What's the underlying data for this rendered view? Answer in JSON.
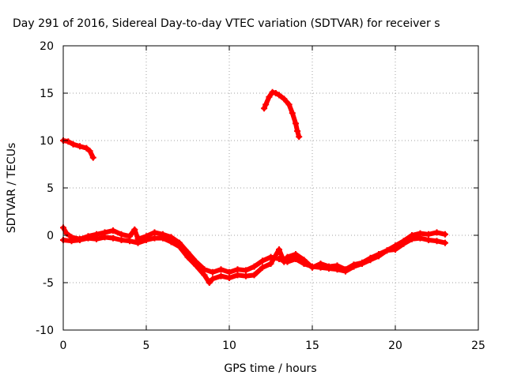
{
  "chart_data": {
    "type": "line",
    "title": "Day 291 of 2016, Sidereal Day-to-day VTEC variation (SDTVAR) for receiver s",
    "xlabel": "GPS time / hours",
    "ylabel": "SDTVAR / TECUs",
    "xlim": [
      0,
      25
    ],
    "ylim": [
      -10,
      20
    ],
    "xticks": [
      0,
      5,
      10,
      15,
      20,
      25
    ],
    "yticks": [
      -10,
      -5,
      0,
      5,
      10,
      15,
      20
    ],
    "grid": true,
    "legend": "none",
    "colors": {
      "series": "#ff0000",
      "grid": "#a0a0a0",
      "axis": "#000000"
    },
    "series": [
      {
        "points": [
          [
            0,
            0.8
          ],
          [
            0.2,
            0.2
          ],
          [
            0.5,
            -0.2
          ],
          [
            1,
            -0.4
          ],
          [
            1.5,
            -0.1
          ],
          [
            2,
            0.1
          ],
          [
            2.5,
            0.3
          ],
          [
            3,
            0.5
          ],
          [
            3.5,
            0.1
          ],
          [
            4,
            -0.1
          ],
          [
            4.3,
            0.6
          ],
          [
            4.5,
            -0.4
          ],
          [
            5,
            -0.1
          ],
          [
            5.5,
            0.3
          ],
          [
            6,
            0.1
          ],
          [
            6.5,
            -0.2
          ],
          [
            7,
            -0.8
          ],
          [
            7.5,
            -1.8
          ],
          [
            8,
            -2.8
          ],
          [
            8.5,
            -3.6
          ],
          [
            9,
            -3.9
          ],
          [
            9.5,
            -3.6
          ],
          [
            10,
            -3.9
          ],
          [
            10.5,
            -3.6
          ],
          [
            11,
            -3.7
          ],
          [
            11.5,
            -3.3
          ],
          [
            12,
            -2.7
          ],
          [
            12.5,
            -2.3
          ],
          [
            13,
            -2.5
          ],
          [
            13.5,
            -2.8
          ],
          [
            14,
            -2.5
          ],
          [
            14.5,
            -3.0
          ],
          [
            15,
            -3.3
          ],
          [
            15.5,
            -3.4
          ],
          [
            16,
            -3.5
          ],
          [
            16.5,
            -3.6
          ],
          [
            17,
            -3.8
          ],
          [
            17.5,
            -3.3
          ],
          [
            18,
            -3.0
          ],
          [
            18.5,
            -2.6
          ],
          [
            19,
            -2.2
          ],
          [
            19.5,
            -1.6
          ],
          [
            20,
            -1.1
          ],
          [
            20.5,
            -0.6
          ],
          [
            21,
            0.0
          ],
          [
            21.5,
            0.2
          ],
          [
            22,
            0.1
          ],
          [
            22.5,
            0.3
          ],
          [
            23,
            0.1
          ]
        ]
      },
      {
        "points": [
          [
            0,
            -0.5
          ],
          [
            0.5,
            -0.6
          ],
          [
            1,
            -0.5
          ],
          [
            1.5,
            -0.3
          ],
          [
            2,
            -0.4
          ],
          [
            2.5,
            -0.2
          ],
          [
            3,
            -0.3
          ],
          [
            3.5,
            -0.5
          ],
          [
            4,
            -0.6
          ],
          [
            4.5,
            -0.8
          ],
          [
            5,
            -0.5
          ],
          [
            5.5,
            -0.3
          ],
          [
            6,
            -0.3
          ],
          [
            6.5,
            -0.7
          ],
          [
            7,
            -1.2
          ],
          [
            7.5,
            -2.3
          ],
          [
            8,
            -3.2
          ],
          [
            8.5,
            -4.2
          ],
          [
            8.8,
            -5.0
          ],
          [
            9,
            -4.6
          ],
          [
            9.5,
            -4.3
          ],
          [
            10,
            -4.5
          ],
          [
            10.5,
            -4.2
          ],
          [
            11,
            -4.3
          ],
          [
            11.5,
            -4.2
          ],
          [
            12,
            -3.4
          ],
          [
            12.5,
            -3.0
          ],
          [
            13,
            -1.5
          ],
          [
            13.3,
            -2.8
          ],
          [
            13.5,
            -2.3
          ],
          [
            14,
            -2.0
          ],
          [
            14.5,
            -2.6
          ],
          [
            15,
            -3.4
          ],
          [
            15.5,
            -3.0
          ],
          [
            16,
            -3.3
          ],
          [
            16.5,
            -3.2
          ],
          [
            17,
            -3.6
          ],
          [
            17.5,
            -3.1
          ],
          [
            18,
            -2.9
          ],
          [
            18.5,
            -2.4
          ],
          [
            19,
            -2.0
          ],
          [
            19.5,
            -1.6
          ],
          [
            20,
            -1.5
          ],
          [
            20.5,
            -0.9
          ],
          [
            21,
            -0.4
          ],
          [
            21.5,
            -0.3
          ],
          [
            22,
            -0.5
          ],
          [
            22.5,
            -0.6
          ],
          [
            23,
            -0.8
          ]
        ]
      },
      {
        "points": [
          [
            0,
            10
          ],
          [
            0.3,
            9.9
          ],
          [
            0.6,
            9.6
          ],
          [
            1.0,
            9.4
          ],
          [
            1.4,
            9.2
          ],
          [
            1.6,
            8.9
          ],
          [
            1.8,
            8.2
          ]
        ]
      },
      {
        "points": [
          [
            12.1,
            13.4
          ],
          [
            12.2,
            13.8
          ],
          [
            12.4,
            14.6
          ],
          [
            12.6,
            15.1
          ],
          [
            12.8,
            15.0
          ],
          [
            13.0,
            14.8
          ],
          [
            13.3,
            14.4
          ],
          [
            13.6,
            13.8
          ],
          [
            13.8,
            12.9
          ],
          [
            14.0,
            11.8
          ],
          [
            14.1,
            11.0
          ],
          [
            14.2,
            10.4
          ]
        ]
      }
    ]
  }
}
